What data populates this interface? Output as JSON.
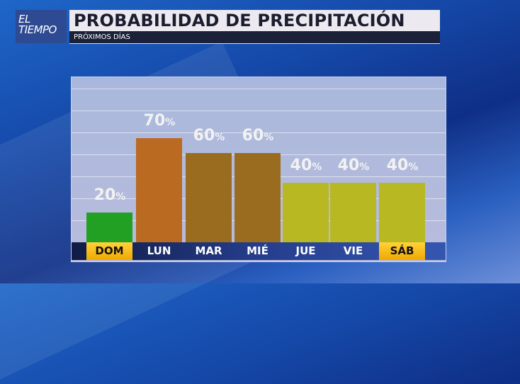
{
  "logo": {
    "line1": "EL",
    "line2": "TIEMPO"
  },
  "header": {
    "title": "PROBABILIDAD DE PRECIPITACIÓN",
    "subtitle": "PRÓXIMOS DÍAS"
  },
  "chart_data": {
    "type": "bar",
    "categories": [
      "DOM",
      "LUN",
      "MAR",
      "MIÉ",
      "JUE",
      "VIE",
      "SÁB"
    ],
    "values": [
      20,
      70,
      60,
      60,
      40,
      40,
      40
    ],
    "value_labels": [
      "20",
      "70",
      "60",
      "60",
      "40",
      "40",
      "40"
    ],
    "unit": "%",
    "ylim": [
      0,
      110
    ],
    "grid": true,
    "bar_colors": [
      "#22a024",
      "#bb6a22",
      "#9a6c20",
      "#9a6c20",
      "#b8b822",
      "#b8b822",
      "#b8b822"
    ],
    "highlighted_categories": [
      "DOM",
      "SÁB"
    ],
    "highlight_color": "#f5b800"
  }
}
